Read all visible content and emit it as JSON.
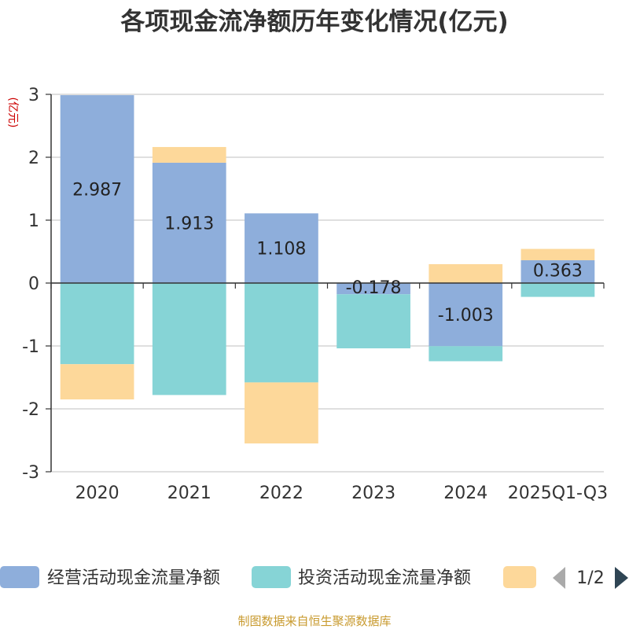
{
  "chart_data": {
    "type": "bar",
    "stacked": true,
    "title": "各项现金流净额历年变化情况(亿元)",
    "ylabel": "(亿元)",
    "ylim": [
      -3,
      3
    ],
    "yticks": [
      3,
      2,
      1,
      0,
      -1,
      -2,
      -3
    ],
    "grid": true,
    "categories": [
      "2020",
      "2021",
      "2022",
      "2023",
      "2024",
      "2025Q1-Q3"
    ],
    "series": [
      {
        "name": "经营活动现金流量净额",
        "color": "#8eaedb",
        "values": [
          2.987,
          1.913,
          1.108,
          -0.178,
          -1.003,
          0.363
        ],
        "labels": [
          "2.987",
          "1.913",
          "1.108",
          "-0.178",
          "-1.003",
          "0.363"
        ]
      },
      {
        "name": "投资活动现金流量净额",
        "color": "#86d4d6",
        "values": [
          -1.29,
          -1.78,
          -1.58,
          -0.86,
          -0.24,
          -0.22
        ]
      },
      {
        "name": "",
        "color": "#fdd89a",
        "values": [
          -0.56,
          0.25,
          -0.97,
          0.0,
          0.3,
          0.18
        ]
      }
    ],
    "legend": {
      "position": "bottom",
      "page": "1/2"
    },
    "source": "制图数据来自恒生聚源数据库"
  }
}
